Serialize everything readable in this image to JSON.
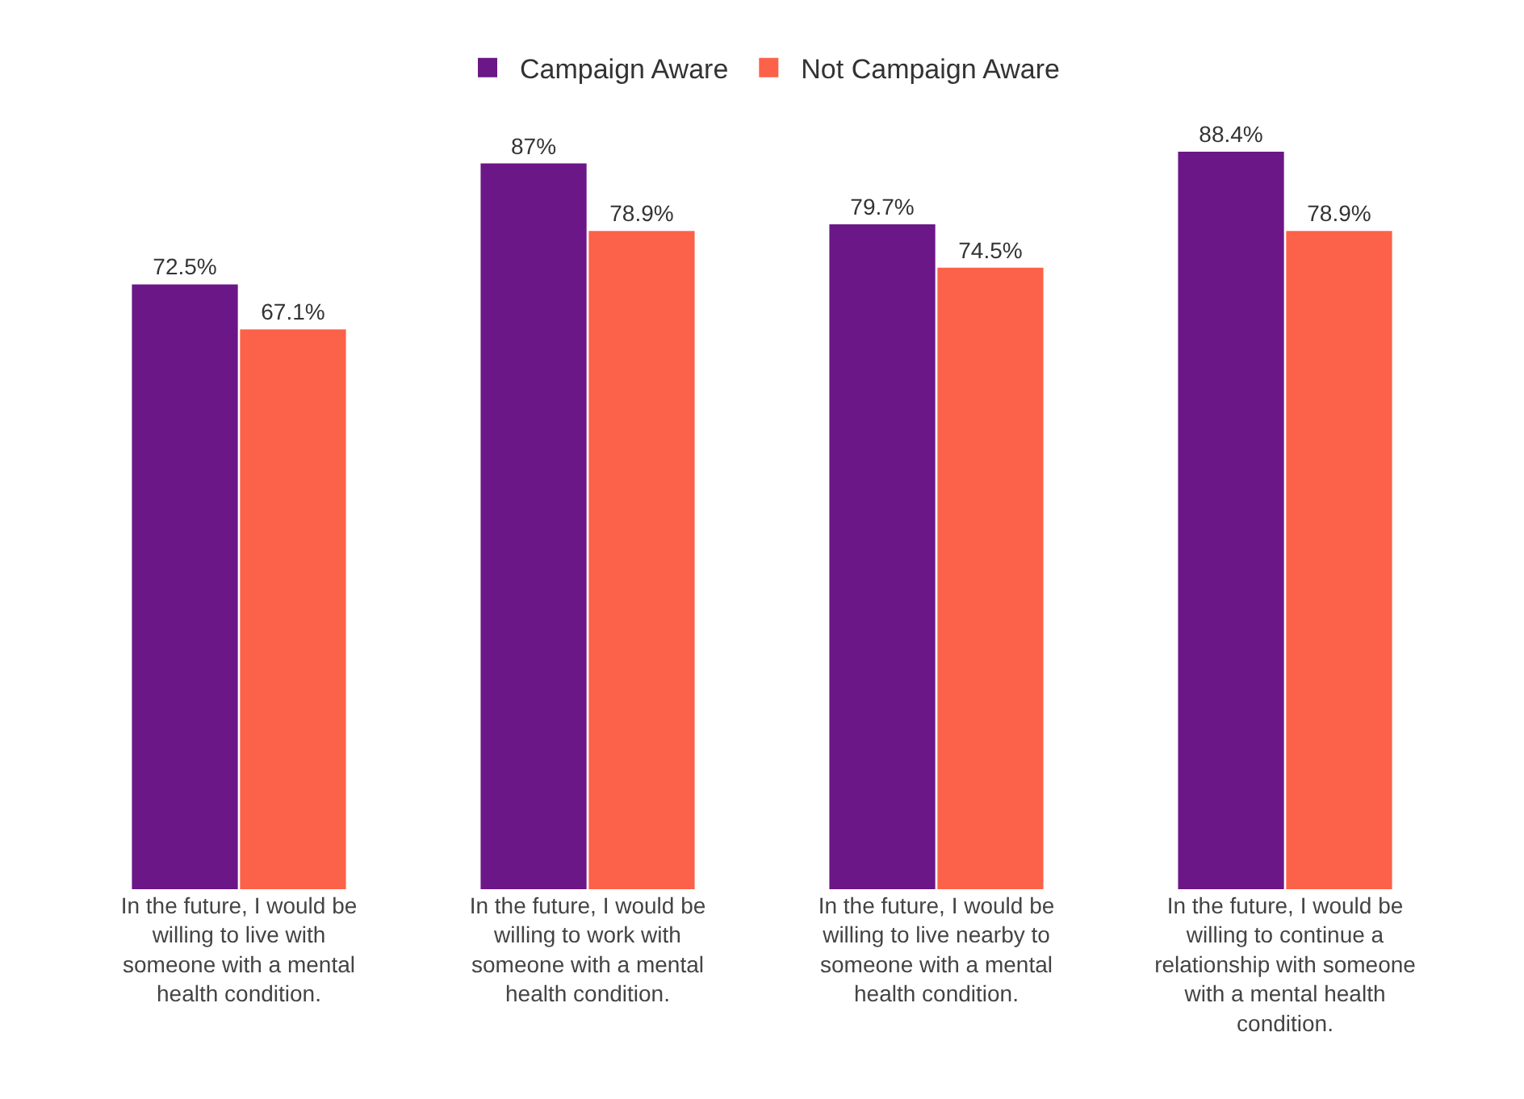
{
  "chart_data": {
    "type": "bar",
    "categories": [
      "In the future, I would be willing to live with someone with a mental health condition.",
      "In the future, I would be willing to work with someone with a mental health condition.",
      "In the future, I would be willing to live nearby to someone with a mental health condition.",
      "In the future, I would be willing to continue a relationship with someone with a mental health condition."
    ],
    "series": [
      {
        "name": "Campaign Aware",
        "color": "#6b1787",
        "values": [
          72.5,
          87,
          79.7,
          88.4
        ],
        "value_labels": [
          "72.5%",
          "87%",
          "79.7%",
          "88.4%"
        ]
      },
      {
        "name": "Not Campaign Aware",
        "color": "#fc6149",
        "values": [
          67.1,
          78.9,
          74.5,
          78.9
        ],
        "value_labels": [
          "67.1%",
          "78.9%",
          "74.5%",
          "78.9%"
        ]
      }
    ],
    "legend": "top"
  }
}
